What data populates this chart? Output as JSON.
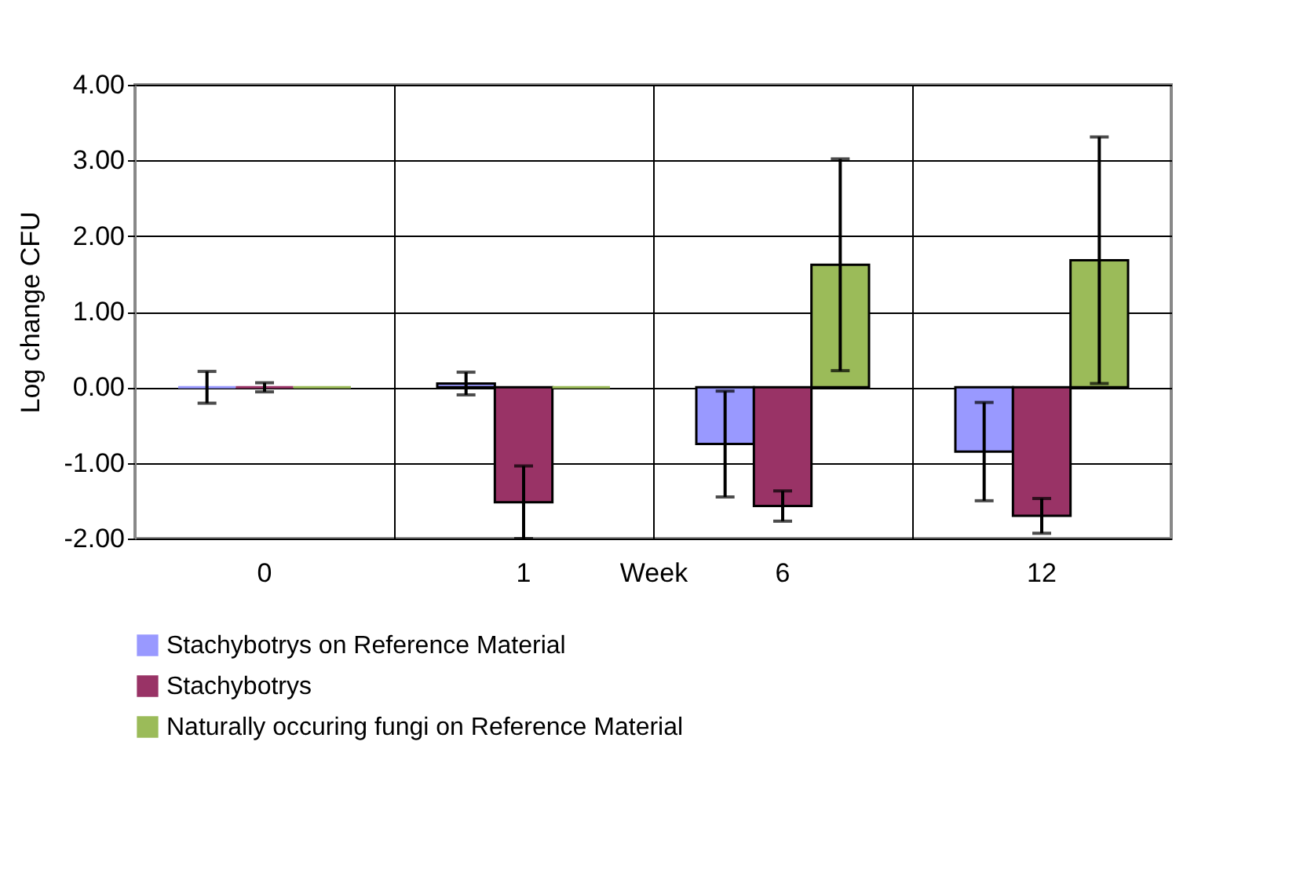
{
  "chart_data": {
    "type": "bar",
    "xlabel": "Week",
    "ylabel": "Log change CFU",
    "categories": [
      "0",
      "1",
      "6",
      "12"
    ],
    "series": [
      {
        "name": "Stachybotrys on Reference Material",
        "color": "#9999ff",
        "values": [
          0,
          0.05,
          -0.75,
          -0.85
        ],
        "errors": [
          0.21,
          0.15,
          0.7,
          0.65
        ]
      },
      {
        "name": "Stachybotrys",
        "color": "#993366",
        "values": [
          0,
          -1.52,
          -1.57,
          -1.7
        ],
        "errors": [
          0.06,
          0.48,
          0.2,
          0.23
        ]
      },
      {
        "name": "Naturally occuring fungi on Reference Material",
        "color": "#9bbb59",
        "values": [
          0,
          0,
          1.62,
          1.68
        ],
        "errors": [
          null,
          null,
          1.4,
          1.63
        ]
      }
    ],
    "ylim": [
      -2,
      4
    ],
    "yticks": [
      {
        "value": -2,
        "label": "-2.00"
      },
      {
        "value": -1,
        "label": "-1.00"
      },
      {
        "value": 0,
        "label": "0.00"
      },
      {
        "value": 1,
        "label": "1.00"
      },
      {
        "value": 2,
        "label": "2.00"
      },
      {
        "value": 3,
        "label": "3.00"
      },
      {
        "value": 4,
        "label": "4.00"
      }
    ],
    "grid": true,
    "legend": "bottom"
  }
}
